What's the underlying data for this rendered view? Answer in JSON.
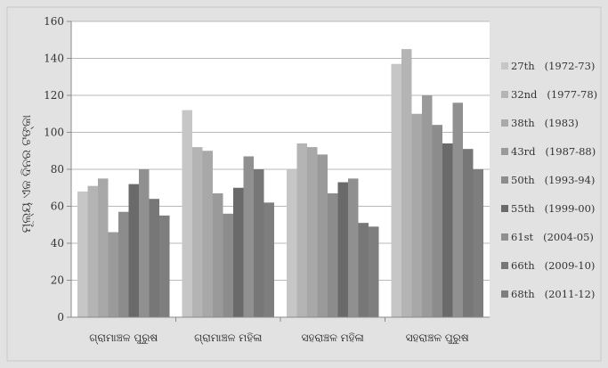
{
  "chart_data": {
    "type": "bar",
    "ylabel": "ମୂଲ୍ୟ ଏକ ଦିନର ଟଙ୍କା",
    "ylim": [
      0,
      160
    ],
    "yticks": [
      0,
      20,
      40,
      60,
      80,
      100,
      120,
      140,
      160
    ],
    "grid": true,
    "legend_position": "right",
    "categories": [
      "ଗ୍ରାମାଞ୍ଚଳ ପୁରୁଷ",
      "ଗ୍ରାମାଞ୍ଚଳ ମହିଳା",
      "ସହରାଞ୍ଚଳ ମହିଳା",
      "ସହରାଞ୍ଚଳ ପୁରୁଷ"
    ],
    "series": [
      {
        "name": "27th   (1972-73)",
        "color": "#c6c6c6",
        "values": [
          68,
          112,
          80,
          137
        ]
      },
      {
        "name": "32nd   (1977-78)",
        "color": "#b4b4b4",
        "values": [
          71,
          92,
          94,
          145
        ]
      },
      {
        "name": "38th   (1983)",
        "color": "#a8a8a8",
        "values": [
          75,
          90,
          92,
          110
        ]
      },
      {
        "name": "43rd   (1987-88)",
        "color": "#9a9a9a",
        "values": [
          46,
          67,
          88,
          120
        ]
      },
      {
        "name": "50th   (1993-94)",
        "color": "#8c8c8c",
        "values": [
          57,
          56,
          67,
          104
        ]
      },
      {
        "name": "55th   (1999-00)",
        "color": "#6a6a6a",
        "values": [
          72,
          70,
          73,
          94
        ]
      },
      {
        "name": "61st   (2004-05)",
        "color": "#909090",
        "values": [
          80,
          87,
          75,
          116
        ]
      },
      {
        "name": "66th   (2009-10)",
        "color": "#777777",
        "values": [
          64,
          80,
          51,
          91
        ]
      },
      {
        "name": "68th   (2011-12)",
        "color": "#7e7e7e",
        "values": [
          55,
          62,
          49,
          80
        ]
      }
    ]
  }
}
